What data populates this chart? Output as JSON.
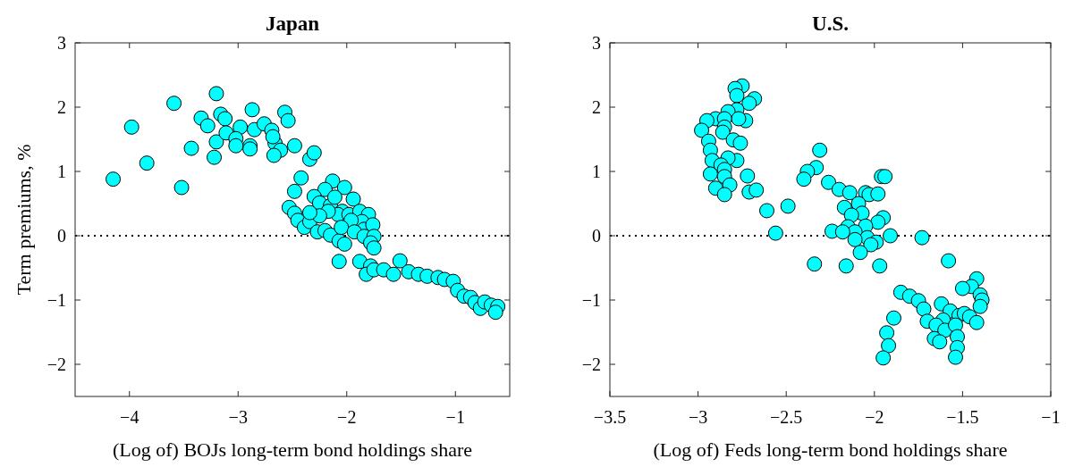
{
  "chart_data": [
    {
      "type": "scatter",
      "title": "Japan",
      "xlabel": "(Log of) BOJs long-term bond holdings share",
      "ylabel": "Term premiums, %",
      "xlim": [
        -4.5,
        -0.5
      ],
      "xticks": [
        -4,
        -3,
        -2,
        -1
      ],
      "ylim": [
        -2.5,
        3
      ],
      "yticks": [
        -2,
        -1,
        0,
        1,
        2,
        3
      ],
      "marker": "circle",
      "color": "#00ffff",
      "ref_lines": [
        {
          "axis": "y",
          "value": 0,
          "line_style": "dotted",
          "color": "#000000"
        }
      ],
      "x": [
        -4.15,
        -3.98,
        -3.84,
        -3.59,
        -3.52,
        -3.43,
        -3.34,
        -3.28,
        -3.2,
        -3.16,
        -3.12,
        -3.2,
        -3.22,
        -3.11,
        -2.98,
        -3.02,
        -3.02,
        -2.89,
        -2.89,
        -2.87,
        -2.85,
        -2.76,
        -2.69,
        -2.66,
        -2.57,
        -2.54,
        -2.68,
        -2.61,
        -2.67,
        -2.48,
        -2.34,
        -2.3,
        -2.42,
        -2.48,
        -2.53,
        -2.48,
        -2.45,
        -2.39,
        -2.34,
        -2.27,
        -2.2,
        -2.15,
        -2.07,
        -2.02,
        -2.07,
        -1.88,
        -1.78,
        -1.82,
        -1.75,
        -1.66,
        -1.57,
        -1.51,
        -1.43,
        -1.34,
        -1.26,
        -1.16,
        -1.1,
        -1.02,
        -0.98,
        -0.92,
        -0.86,
        -0.82,
        -0.77,
        -0.73,
        -0.67,
        -0.61,
        -0.63,
        -2.13,
        -2.2,
        -2.02,
        -2.3,
        -2.25,
        -2.15,
        -2.11,
        -1.94,
        -2.04,
        -2.08,
        -1.98,
        -1.88,
        -1.8,
        -1.86,
        -1.96,
        -2.05,
        -1.84,
        -1.76,
        -1.93,
        -1.84,
        -1.75,
        -1.78,
        -1.75,
        -2.17,
        -2.25,
        -2.34
      ],
      "values": [
        0.88,
        1.69,
        1.13,
        2.06,
        0.75,
        1.36,
        1.83,
        1.71,
        2.21,
        1.89,
        1.82,
        1.46,
        1.22,
        1.6,
        1.69,
        1.51,
        1.4,
        1.4,
        1.35,
        1.96,
        1.65,
        1.74,
        1.64,
        1.44,
        1.92,
        1.79,
        1.54,
        1.33,
        1.25,
        1.4,
        1.19,
        1.29,
        0.9,
        0.69,
        0.44,
        0.35,
        0.24,
        0.13,
        0.22,
        0.06,
        0.08,
        0.01,
        -0.08,
        -0.13,
        -0.4,
        -0.4,
        -0.47,
        -0.6,
        -0.53,
        -0.53,
        -0.6,
        -0.39,
        -0.56,
        -0.6,
        -0.63,
        -0.65,
        -0.68,
        -0.71,
        -0.85,
        -0.94,
        -0.96,
        -1.04,
        -1.13,
        -1.03,
        -1.08,
        -1.1,
        -1.19,
        0.85,
        0.72,
        0.75,
        0.61,
        0.51,
        0.47,
        0.6,
        0.57,
        0.38,
        0.33,
        0.33,
        0.38,
        0.33,
        0.22,
        0.24,
        0.13,
        0.1,
        0.17,
        0.06,
        -0.01,
        -0.01,
        -0.11,
        -0.19,
        0.38,
        0.31,
        0.36
      ]
    },
    {
      "type": "scatter",
      "title": "U.S.",
      "xlabel": "(Log of) Feds long-term bond holdings share",
      "xlim": [
        -3.5,
        -1
      ],
      "xticks": [
        -3.5,
        -3,
        -2.5,
        -2,
        -1.5,
        -1
      ],
      "ylim": [
        -2.5,
        3
      ],
      "yticks": [
        -2,
        -1,
        0,
        1,
        2,
        3
      ],
      "marker": "circle",
      "color": "#00ffff",
      "ref_lines": [
        {
          "axis": "y",
          "value": 0,
          "line_style": "dotted",
          "color": "#000000"
        }
      ],
      "x": [
        -2.75,
        -2.79,
        -2.78,
        -2.68,
        -2.71,
        -2.78,
        -2.83,
        -2.73,
        -2.77,
        -2.9,
        -2.95,
        -2.85,
        -2.85,
        -2.98,
        -2.86,
        -2.94,
        -2.93,
        -2.8,
        -2.76,
        -2.78,
        -2.83,
        -2.92,
        -2.87,
        -2.85,
        -2.93,
        -2.85,
        -2.72,
        -2.82,
        -2.9,
        -2.85,
        -2.71,
        -2.67,
        -2.61,
        -2.49,
        -2.56,
        -2.31,
        -2.33,
        -2.38,
        -2.4,
        -2.26,
        -2.2,
        -2.14,
        -2.24,
        -2.34,
        -2.16,
        -1.96,
        -1.94,
        -2.05,
        -2.03,
        -1.98,
        -2.17,
        -2.09,
        -2.07,
        -2.13,
        -1.95,
        -1.98,
        -2.05,
        -2.15,
        -2.11,
        -2.18,
        -2.04,
        -2.11,
        -1.99,
        -2.02,
        -1.91,
        -2.08,
        -1.73,
        -1.97,
        -1.58,
        -1.42,
        -1.45,
        -1.5,
        -1.4,
        -1.39,
        -1.4,
        -1.85,
        -1.8,
        -1.75,
        -1.72,
        -1.7,
        -1.62,
        -1.57,
        -1.61,
        -1.52,
        -1.49,
        -1.46,
        -1.42,
        -1.65,
        -1.6,
        -1.54,
        -1.53,
        -1.66,
        -1.63,
        -1.53,
        -1.54,
        -1.89,
        -1.93,
        -1.92,
        -1.95
      ],
      "values": [
        2.33,
        2.29,
        2.18,
        2.13,
        2.06,
        1.96,
        1.93,
        1.79,
        1.82,
        1.82,
        1.79,
        1.82,
        1.69,
        1.64,
        1.61,
        1.47,
        1.33,
        1.49,
        1.44,
        1.17,
        1.21,
        1.17,
        1.1,
        1.03,
        0.96,
        0.92,
        0.93,
        0.79,
        0.74,
        0.64,
        0.68,
        0.71,
        0.39,
        0.46,
        0.04,
        1.33,
        1.06,
        1,
        0.88,
        0.83,
        0.72,
        0.67,
        0.07,
        -0.44,
        -0.47,
        0.92,
        0.92,
        0.67,
        0.64,
        0.65,
        0.44,
        0.5,
        0.35,
        0.32,
        0.28,
        0.21,
        0.15,
        0.14,
        0.06,
        0.06,
        -0.03,
        -0.06,
        -0.1,
        -0.14,
        0,
        -0.26,
        -0.03,
        -0.47,
        -0.39,
        -0.67,
        -0.79,
        -0.82,
        -0.92,
        -1,
        -1.1,
        -0.88,
        -0.94,
        -1.01,
        -1.14,
        -1.33,
        -1.06,
        -1.17,
        -1.31,
        -1.24,
        -1.21,
        -1.26,
        -1.35,
        -1.39,
        -1.47,
        -1.39,
        -1.57,
        -1.6,
        -1.65,
        -1.74,
        -1.89,
        -1.28,
        -1.51,
        -1.71,
        -1.9
      ]
    }
  ]
}
